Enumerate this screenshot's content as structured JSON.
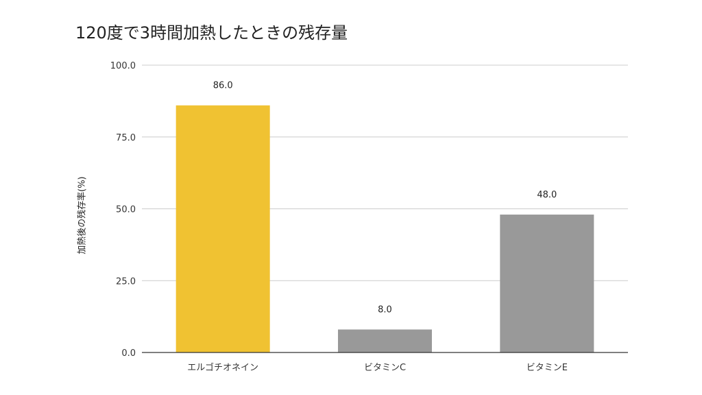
{
  "chart_data": {
    "type": "bar",
    "title": "120度で3時間加熱したときの残存量",
    "xlabel": "",
    "ylabel": "加熱後の残存率(%)",
    "categories": [
      "エルゴチオネイン",
      "ビタミンC",
      "ビタミンE"
    ],
    "series": [
      {
        "values": [
          86.0,
          8.0,
          48.0
        ]
      }
    ],
    "data_labels": [
      "86.0",
      "8.0",
      "48.0"
    ],
    "bar_colors": [
      "#f0c232",
      "#999999",
      "#999999"
    ],
    "ylim": [
      0,
      100
    ],
    "yticks": [
      0,
      25,
      50,
      75,
      100
    ],
    "ytick_labels": [
      "0.0",
      "25.0",
      "50.0",
      "75.0",
      "100.0"
    ],
    "grid": true,
    "legend": "none"
  }
}
